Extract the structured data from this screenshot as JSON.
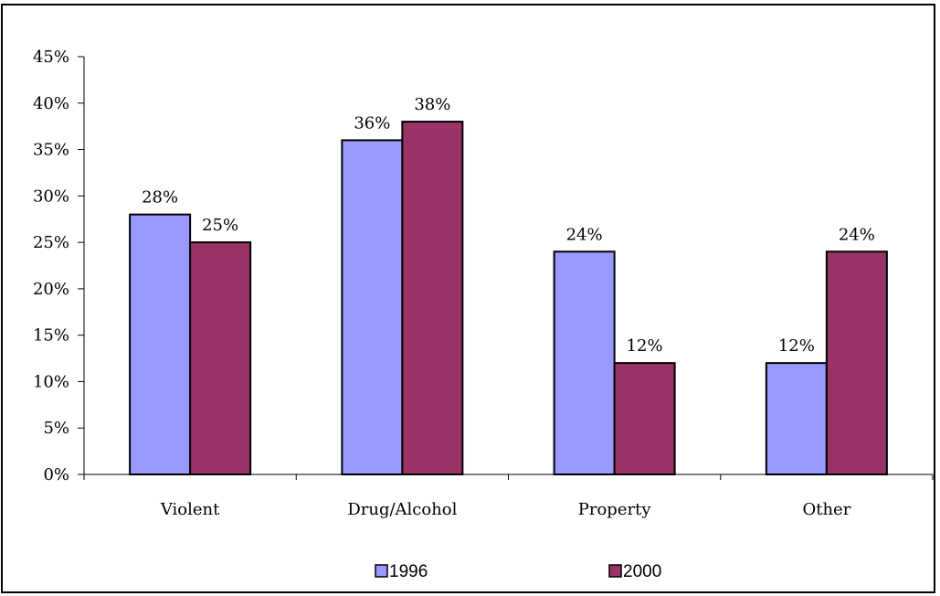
{
  "chart_data": {
    "type": "bar",
    "categories": [
      "Violent",
      "Drug/Alcohol",
      "Property",
      "Other"
    ],
    "series": [
      {
        "name": "1996",
        "values": [
          28,
          36,
          24,
          12
        ],
        "labels": [
          "28%",
          "36%",
          "24%",
          "12%"
        ],
        "color": "#9999FF"
      },
      {
        "name": "2000",
        "values": [
          25,
          38,
          12,
          24
        ],
        "labels": [
          "25%",
          "38%",
          "12%",
          "24%"
        ],
        "color": "#993366"
      }
    ],
    "yticks": [
      "0%",
      "5%",
      "10%",
      "15%",
      "20%",
      "25%",
      "30%",
      "35%",
      "40%",
      "45%"
    ],
    "ylim": [
      0,
      45
    ],
    "ytick_step": 5,
    "grid": false,
    "legend": "bottom",
    "title": "",
    "xlabel": "",
    "ylabel": ""
  }
}
